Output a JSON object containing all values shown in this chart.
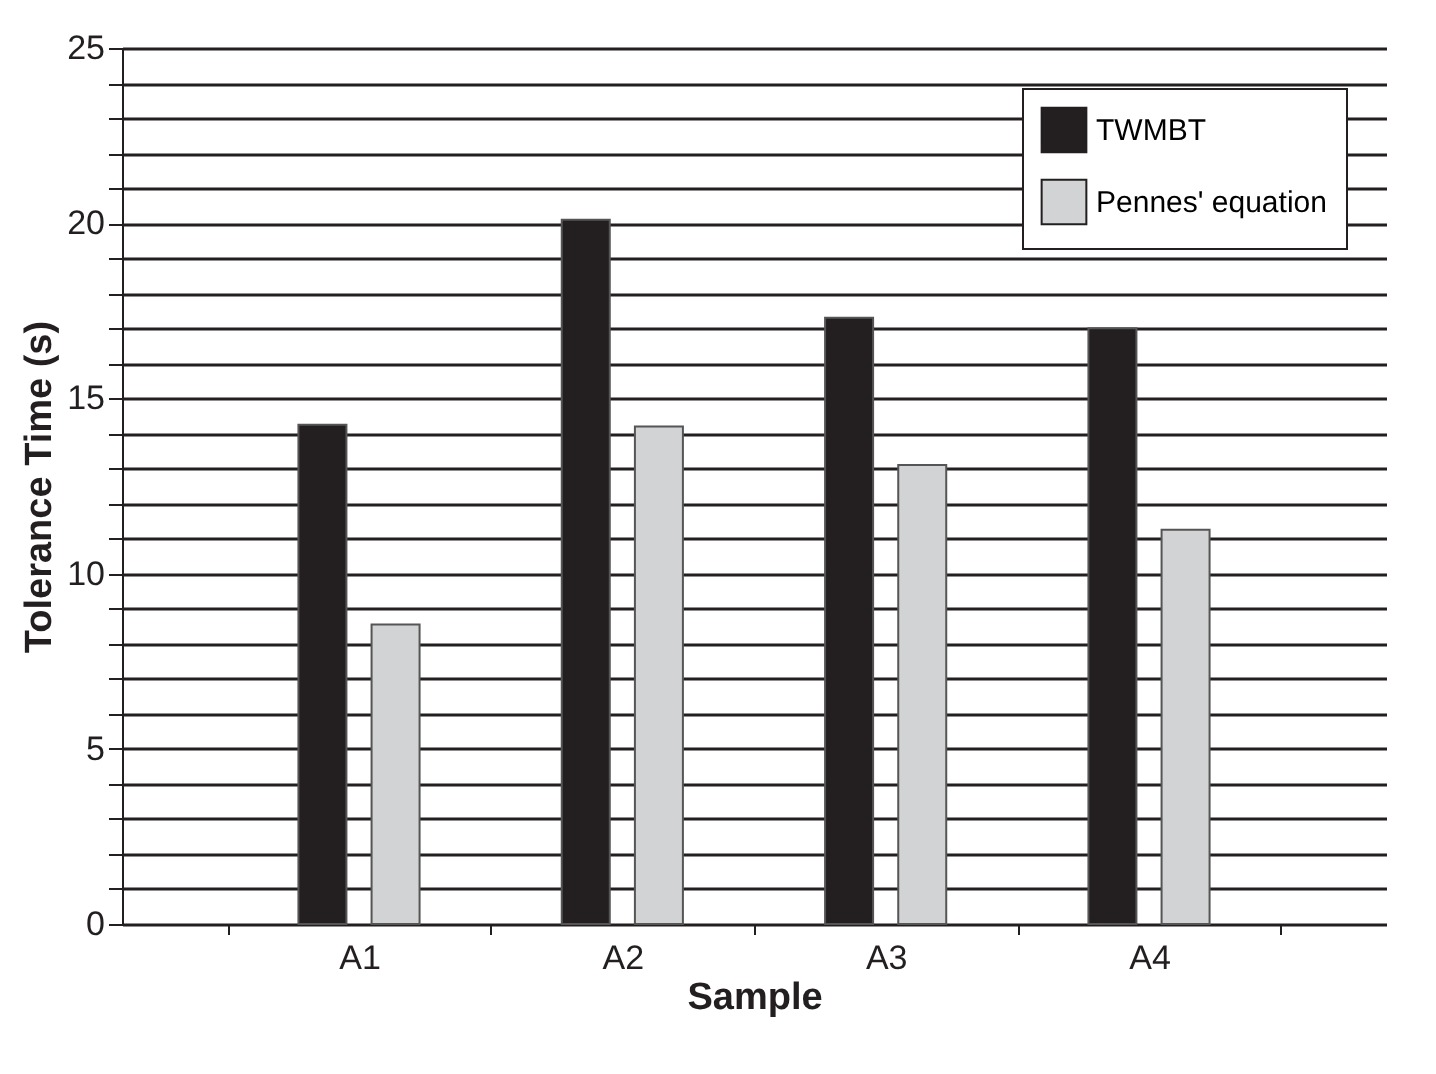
{
  "chart_data": {
    "type": "bar",
    "xlabel": "Sample",
    "ylabel": "Tolerance Time (s)",
    "categories": [
      "A1",
      "A2",
      "A3",
      "A4"
    ],
    "series": [
      {
        "name": "TWMBT",
        "color": "#231f20",
        "values": [
          14.25,
          20.1,
          17.3,
          17.0
        ]
      },
      {
        "name": "Pennes' equation",
        "color": "#d1d3d4",
        "values": [
          8.55,
          14.2,
          13.1,
          11.25
        ]
      }
    ],
    "ylim": [
      0,
      25
    ],
    "yticks": [
      0,
      {
        "value": 1,
        "label": null
      },
      {
        "value": 2,
        "label": null
      },
      {
        "value": 3,
        "label": null
      },
      {
        "value": 4,
        "label": null
      },
      5,
      {
        "value": 6,
        "label": null
      },
      {
        "value": 7,
        "label": null
      },
      {
        "value": 8,
        "label": null
      },
      {
        "value": 9,
        "label": null
      },
      10,
      {
        "value": 11,
        "label": null
      },
      {
        "value": 12,
        "label": null
      },
      {
        "value": 13,
        "label": null
      },
      {
        "value": 14,
        "label": null
      },
      15,
      {
        "value": 16,
        "label": null
      },
      {
        "value": 17,
        "label": null
      },
      {
        "value": 18,
        "label": null
      },
      {
        "value": 19,
        "label": null
      },
      20,
      {
        "value": 21,
        "label": null
      },
      {
        "value": 22,
        "label": null
      },
      {
        "value": 23,
        "label": null
      },
      {
        "value": 24,
        "label": null
      },
      25
    ],
    "grid": "y",
    "legend": "top right"
  }
}
